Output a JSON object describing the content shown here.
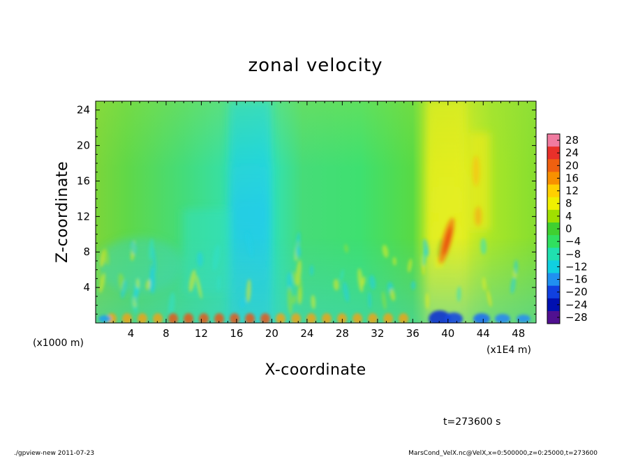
{
  "chart_data": {
    "type": "heatmap",
    "title": "zonal velocity",
    "xlabel": "X-coordinate",
    "ylabel": "Z-coordinate",
    "x_unit_label": "(x1E4 m)",
    "y_unit_label": "(x1000 m)",
    "xlim": [
      0,
      50
    ],
    "ylim": [
      0,
      25
    ],
    "x_ticks": [
      "4",
      "8",
      "12",
      "16",
      "20",
      "24",
      "28",
      "32",
      "36",
      "40",
      "44",
      "48"
    ],
    "y_ticks": [
      "4",
      "8",
      "12",
      "16",
      "20",
      "24"
    ],
    "colorbar_ticks": [
      "28",
      "24",
      "20",
      "16",
      "12",
      "8",
      "4",
      "0",
      "−4",
      "−8",
      "−12",
      "−16",
      "−20",
      "−24",
      "−28"
    ],
    "colorbar_colors": [
      "#f07ba0",
      "#e8302a",
      "#f06010",
      "#f89000",
      "#ffd000",
      "#f0f000",
      "#a0e000",
      "#40d030",
      "#30e060",
      "#20e0b0",
      "#10d0e0",
      "#2090f0",
      "#1040e0",
      "#0010b0",
      "#501090"
    ],
    "time_label": "t=273600 s",
    "footer_left": "./gpview-new 2011-07-23",
    "footer_right": "MarsCond_VelX.nc@VelX,x=0:500000,z=0:25000,t=273600"
  }
}
